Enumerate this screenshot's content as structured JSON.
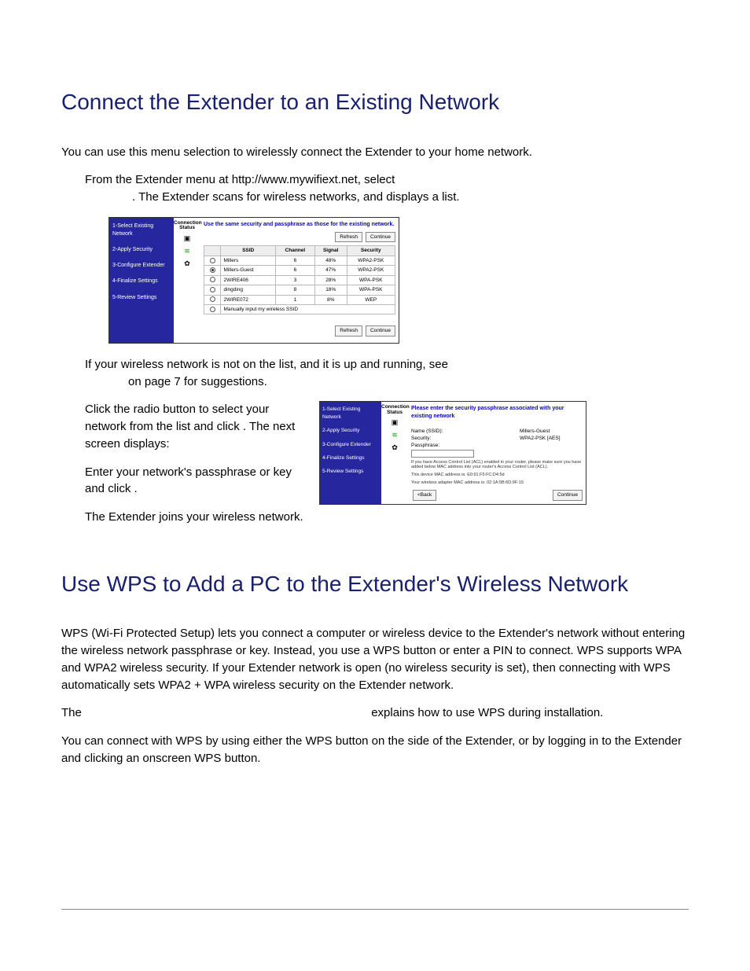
{
  "h1": "Connect the Extender to an Existing Network",
  "p1": "You can use this menu selection to wirelessly connect the Extender to your home network.",
  "p2a": "From the Extender menu at http://www.mywifiext.net, select",
  "p2b": ". The Extender scans for wireless networks, and displays a list.",
  "shot1": {
    "sidebar_steps": [
      "1-Select Existing Network",
      "2-Apply Security",
      "3-Configure Extender",
      "4-Finalize Settings",
      "5-Review Settings"
    ],
    "status_header": "Connection Status",
    "hint": "Use the same security and passphrase as those for the existing network.",
    "refresh": "Refresh",
    "continue": "Continue",
    "columns": [
      "SSID",
      "Channel",
      "Signal",
      "Security"
    ],
    "rows": [
      {
        "sel": false,
        "ssid": "Millers",
        "ch": "6",
        "sig": "48%",
        "sec": "WPA2-PSK"
      },
      {
        "sel": true,
        "ssid": "Millers-Guest",
        "ch": "6",
        "sig": "47%",
        "sec": "WPA2-PSK"
      },
      {
        "sel": false,
        "ssid": "2WIRE406",
        "ch": "3",
        "sig": "28%",
        "sec": "WPA-PSK"
      },
      {
        "sel": false,
        "ssid": "dingding",
        "ch": "8",
        "sig": "18%",
        "sec": "WPA-PSK"
      },
      {
        "sel": false,
        "ssid": "2WIRE072",
        "ch": "1",
        "sig": "8%",
        "sec": "WEP"
      }
    ],
    "manual": "Manually input my wireless SSID"
  },
  "p3a": "If your wireless network is not on the list, and it is up and running, see ",
  "p3b": " on page 7 for suggestions.",
  "p4": "Click the radio button to select your network from the list and click                 . The next screen displays:",
  "p5": "Enter your network's passphrase or key and click               .",
  "p6": "The Extender joins your wireless network.",
  "shot2": {
    "sidebar_steps": [
      "1-Select Existing Network",
      "2-Apply Security",
      "3-Configure Extender",
      "4-Finalize Settings",
      "5-Review Settings"
    ],
    "status_header": "Connection Status",
    "hint": "Please enter the security passphrase associated with your existing network",
    "name_label": "Name (SSID):",
    "name_value": "Millers-Guest",
    "sec_label": "Security:",
    "sec_value": "WPA2-PSK [AES]",
    "pass_label": "Passphrase:",
    "fine1": "If you have Access Control List (ACL) enabled in your router, please make sure you have added below MAC address into your router's Access Control List (ACL).",
    "fine2": "This device MAC address is: E0:91:F5:FC:D4:5d",
    "fine3": "Your wireless adapter MAC address is: 02:1A:5B:6D:9F:19",
    "back": "<Back",
    "continue": "Continue"
  },
  "h2": "Use WPS to Add a PC to the Extender's Wireless Network",
  "p7": "WPS (Wi-Fi Protected Setup) lets you connect a computer or wireless device to the Extender's network without entering the wireless network passphrase or key. Instead, you use a WPS button or enter a PIN to connect. WPS supports WPA and WPA2 wireless security. If your Extender network is open (no wireless security is set), then connecting with WPS automatically sets WPA2 + WPA wireless security on the Extender network.",
  "p8a": "The ",
  "p8b": " explains how to use WPS during installation.",
  "p9": "You can connect with WPS by using either the WPS button on the side of the Extender, or by logging in to the Extender and clicking an onscreen WPS button."
}
